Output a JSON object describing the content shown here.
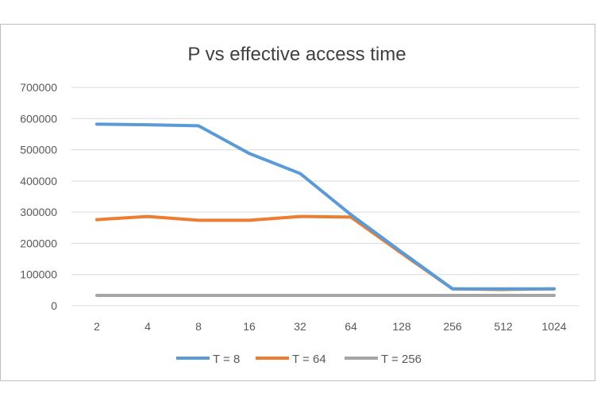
{
  "chart_data": {
    "type": "line",
    "title": "P vs effective access time",
    "xlabel": "",
    "ylabel": "",
    "categories": [
      "2",
      "4",
      "8",
      "16",
      "32",
      "64",
      "128",
      "256",
      "512",
      "1024"
    ],
    "ylim": [
      0,
      700000
    ],
    "yticks": [
      0,
      100000,
      200000,
      300000,
      400000,
      500000,
      600000,
      700000
    ],
    "grid": true,
    "legend": "bottom",
    "series": [
      {
        "name": "T = 8",
        "color": "#5b9bd5",
        "values": [
          582000,
          580000,
          577000,
          488000,
          424000,
          292000,
          172000,
          54000,
          54000,
          54000
        ]
      },
      {
        "name": "T = 64",
        "color": "#ed7d31",
        "values": [
          276000,
          286000,
          274000,
          274000,
          286000,
          284000,
          168000,
          54000,
          52000,
          54000
        ]
      },
      {
        "name": "T = 256",
        "color": "#a5a5a5",
        "values": [
          33000,
          33000,
          33000,
          33000,
          33000,
          33000,
          33000,
          33000,
          33000,
          33000
        ]
      }
    ]
  }
}
